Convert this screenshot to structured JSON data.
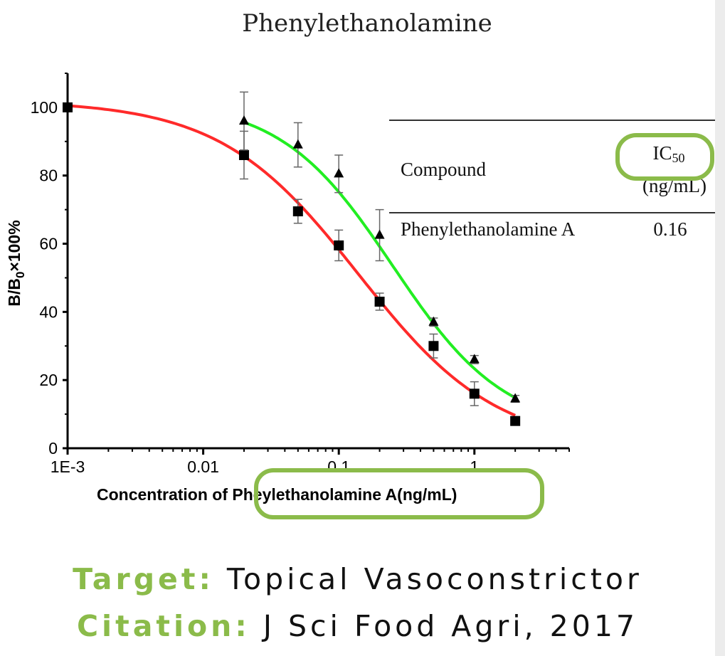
{
  "chart_data": {
    "type": "scatter",
    "title": "Phenylethanolamine",
    "xlabel_prefix": "Concentration of ",
    "xlabel_highlight": "Pheylethanolamine A(ng/mL)",
    "ylabel_main": "B/B",
    "ylabel_sub": "0",
    "ylabel_suffix": "×100%",
    "x_scale": "log",
    "xlim": [
      0.001,
      5
    ],
    "ylim": [
      0,
      110
    ],
    "x_ticks": [
      {
        "value": 0.001,
        "label": "1E-3"
      },
      {
        "value": 0.01,
        "label": "0.01"
      },
      {
        "value": 0.1,
        "label": "0.1"
      },
      {
        "value": 1,
        "label": "1"
      }
    ],
    "y_ticks": [
      {
        "value": 0,
        "label": "0"
      },
      {
        "value": 20,
        "label": "20"
      },
      {
        "value": 40,
        "label": "40"
      },
      {
        "value": 60,
        "label": "60"
      },
      {
        "value": 80,
        "label": "80"
      },
      {
        "value": 100,
        "label": "100"
      }
    ],
    "series": [
      {
        "name": "squares",
        "marker": "square",
        "curve_color": "#ff2a2a",
        "fit": {
          "top": 102,
          "bottom": 0,
          "ic50": 0.14,
          "hill": 0.85
        },
        "points": [
          {
            "x": 0.001,
            "y": 100,
            "err": 0
          },
          {
            "x": 0.02,
            "y": 86,
            "err": 7
          },
          {
            "x": 0.05,
            "y": 69.5,
            "err": 3.5
          },
          {
            "x": 0.1,
            "y": 59.5,
            "err": 4.5
          },
          {
            "x": 0.2,
            "y": 43,
            "err": 2.5
          },
          {
            "x": 0.5,
            "y": 30,
            "err": 3.5
          },
          {
            "x": 1,
            "y": 16,
            "err": 3.5
          },
          {
            "x": 2,
            "y": 8,
            "err": 0
          }
        ]
      },
      {
        "name": "triangles",
        "marker": "triangle",
        "curve_color": "#22ee22",
        "fit": {
          "top": 102,
          "bottom": 5,
          "ic50": 0.25,
          "hill": 1.05
        },
        "points": [
          {
            "x": 0.02,
            "y": 96,
            "err": 8.5
          },
          {
            "x": 0.05,
            "y": 89,
            "err": 6.5
          },
          {
            "x": 0.1,
            "y": 80.5,
            "err": 5.5
          },
          {
            "x": 0.2,
            "y": 62.5,
            "err": 7.5
          },
          {
            "x": 0.5,
            "y": 37,
            "err": 1.2
          },
          {
            "x": 1,
            "y": 26,
            "err": 1.2
          },
          {
            "x": 2,
            "y": 14.5,
            "err": 1
          }
        ]
      }
    ],
    "inset_table": {
      "headers": [
        "Compound",
        "IC50"
      ],
      "header_ic_main": "IC",
      "header_ic_sub": "50",
      "header_units": "(ng/mL)",
      "rows": [
        [
          "Phenylethanolamine A",
          "0.16"
        ]
      ]
    },
    "highlight_color": "#8bbb4a"
  },
  "footer": {
    "target_label": "Target:",
    "target_value": "Topical Vasoconstrictor",
    "citation_label": "Citation:",
    "citation_value": "J Sci Food Agri, 2017",
    "label_color": "#8bbb4a",
    "value_color": "#111111"
  }
}
